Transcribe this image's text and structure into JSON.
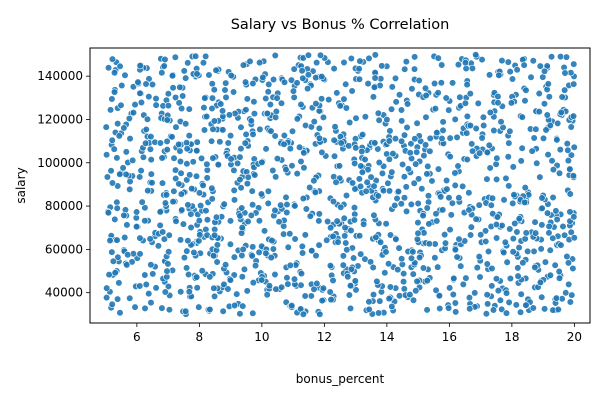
{
  "chart_data": {
    "type": "scatter",
    "title": "Salary vs Bonus % Correlation",
    "xlabel": "bonus_percent",
    "ylabel": "salary",
    "xlim": [
      4.5,
      20.5
    ],
    "ylim": [
      26000,
      153000
    ],
    "x_ticks": [
      6,
      8,
      10,
      12,
      14,
      16,
      18,
      20
    ],
    "y_ticks": [
      40000,
      60000,
      80000,
      100000,
      120000,
      140000
    ],
    "x_tick_labels": [
      "6",
      "8",
      "10",
      "12",
      "14",
      "16",
      "18",
      "20"
    ],
    "y_tick_labels": [
      "40000",
      "60000",
      "80000",
      "100000",
      "120000",
      "140000"
    ],
    "grid": false,
    "legend": "none",
    "marker_color": "#1f77b4",
    "series": [
      {
        "x_range": [
          5.0,
          20.0
        ],
        "y_range": [
          30000,
          150000
        ],
        "count": 1500,
        "distribution": "uniform-random"
      }
    ]
  }
}
